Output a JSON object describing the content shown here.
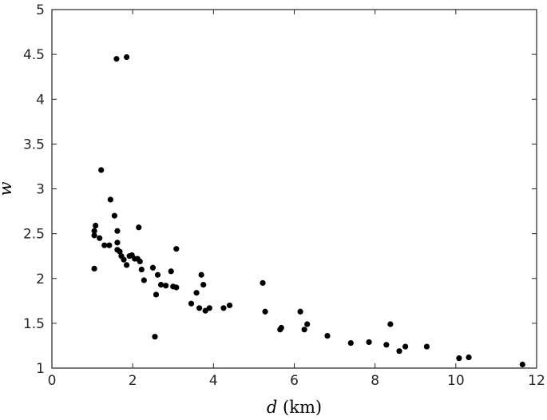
{
  "chart_data": {
    "type": "scatter",
    "xlabel": {
      "var": "d",
      "unit": " (km)"
    },
    "ylabel": {
      "var": "w"
    },
    "xlim": [
      0,
      12
    ],
    "ylim": [
      1,
      5
    ],
    "xticks": [
      "0",
      "2",
      "4",
      "6",
      "8",
      "10",
      "12"
    ],
    "yticks": [
      "1",
      "1.5",
      "2",
      "2.5",
      "3",
      "3.5",
      "4",
      "4.5",
      "5"
    ],
    "grid": false,
    "marker_color": "#000000",
    "axis_color": "#262626",
    "points": [
      [
        1.6,
        4.45
      ],
      [
        1.85,
        4.47
      ],
      [
        1.22,
        3.21
      ],
      [
        1.45,
        2.88
      ],
      [
        1.55,
        2.7
      ],
      [
        1.08,
        2.59
      ],
      [
        1.05,
        2.53
      ],
      [
        1.05,
        2.48
      ],
      [
        1.18,
        2.45
      ],
      [
        1.3,
        2.37
      ],
      [
        1.42,
        2.37
      ],
      [
        1.05,
        2.11
      ],
      [
        1.62,
        2.53
      ],
      [
        1.62,
        2.4
      ],
      [
        1.62,
        2.32
      ],
      [
        1.68,
        2.3
      ],
      [
        1.72,
        2.25
      ],
      [
        1.78,
        2.21
      ],
      [
        1.85,
        2.15
      ],
      [
        1.92,
        2.25
      ],
      [
        1.98,
        2.26
      ],
      [
        2.05,
        2.22
      ],
      [
        2.12,
        2.22
      ],
      [
        2.18,
        2.19
      ],
      [
        2.15,
        2.57
      ],
      [
        2.22,
        2.1
      ],
      [
        2.28,
        1.98
      ],
      [
        2.5,
        2.12
      ],
      [
        2.62,
        2.04
      ],
      [
        2.58,
        1.82
      ],
      [
        2.7,
        1.93
      ],
      [
        2.55,
        1.35
      ],
      [
        2.82,
        1.92
      ],
      [
        2.95,
        2.08
      ],
      [
        3.0,
        1.91
      ],
      [
        3.08,
        1.9
      ],
      [
        3.08,
        2.33
      ],
      [
        3.45,
        1.72
      ],
      [
        3.58,
        1.84
      ],
      [
        3.65,
        1.67
      ],
      [
        3.7,
        2.04
      ],
      [
        3.75,
        1.93
      ],
      [
        3.8,
        1.64
      ],
      [
        3.9,
        1.67
      ],
      [
        4.25,
        1.67
      ],
      [
        4.4,
        1.7
      ],
      [
        5.22,
        1.95
      ],
      [
        5.28,
        1.63
      ],
      [
        5.65,
        1.43
      ],
      [
        5.68,
        1.45
      ],
      [
        6.15,
        1.63
      ],
      [
        6.25,
        1.43
      ],
      [
        6.32,
        1.49
      ],
      [
        6.82,
        1.36
      ],
      [
        7.4,
        1.28
      ],
      [
        7.85,
        1.29
      ],
      [
        8.28,
        1.26
      ],
      [
        8.38,
        1.49
      ],
      [
        8.6,
        1.19
      ],
      [
        8.75,
        1.24
      ],
      [
        9.28,
        1.24
      ],
      [
        10.08,
        1.11
      ],
      [
        10.32,
        1.12
      ],
      [
        11.65,
        1.04
      ]
    ]
  }
}
